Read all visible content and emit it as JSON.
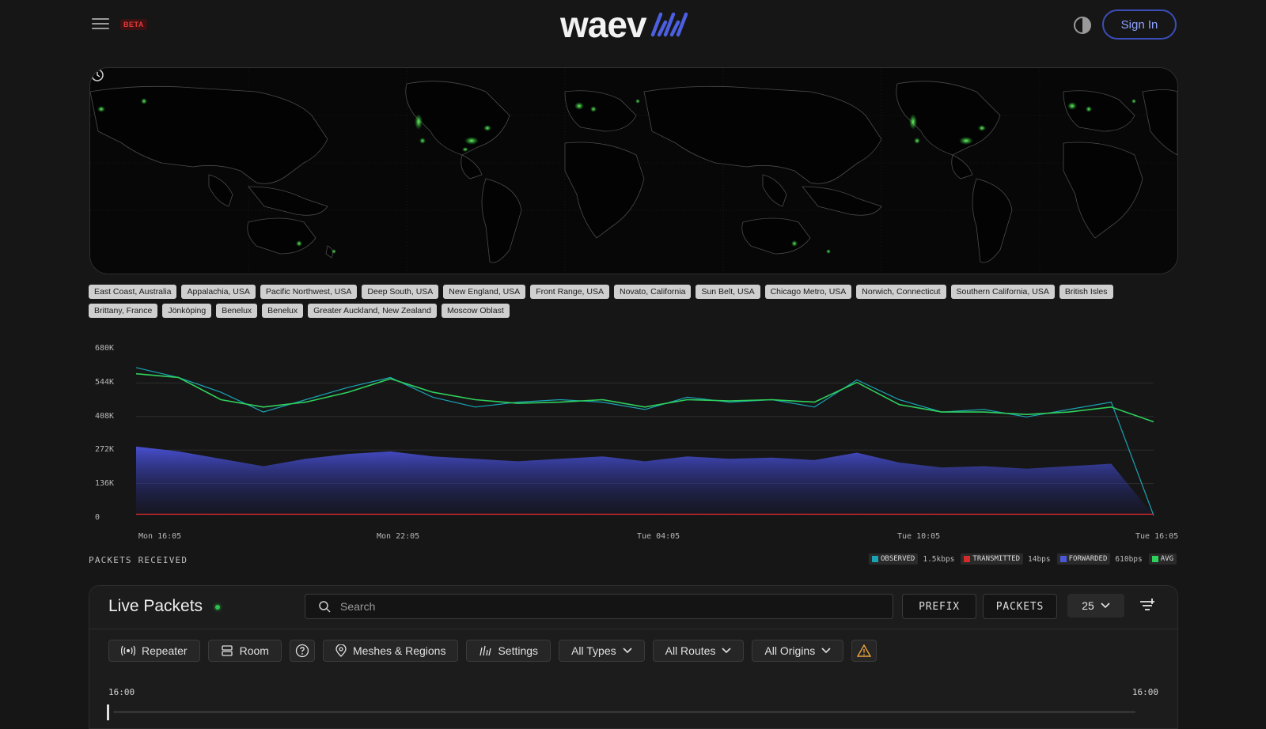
{
  "header": {
    "beta_label": "BETA",
    "logo_text": "waev",
    "signin_label": "Sign In"
  },
  "regions": [
    "East Coast, Australia",
    "Appalachia, USA",
    "Pacific Northwest, USA",
    "Deep South, USA",
    "New England, USA",
    "Front Range, USA",
    "Novato, California",
    "Sun Belt, USA",
    "Chicago Metro, USA",
    "Norwich, Connecticut",
    "Southern California, USA",
    "British Isles",
    "Brittany, France",
    "Jönköping",
    "Benelux",
    "Benelux",
    "Greater Auckland, New Zealand",
    "Moscow Oblast"
  ],
  "chart_data": {
    "type": "area",
    "title": "PACKETS RECEIVED",
    "y_ticks": [
      "680K",
      "544K",
      "408K",
      "272K",
      "136K",
      "0"
    ],
    "x_ticks": [
      "Mon 16:05",
      "Mon 22:05",
      "Tue 04:05",
      "Tue 10:05",
      "Tue 16:05"
    ],
    "ylim": [
      0,
      680000
    ],
    "x": [
      "Mon 16:05",
      "Mon 17:05",
      "Mon 18:05",
      "Mon 19:05",
      "Mon 20:05",
      "Mon 21:05",
      "Mon 22:05",
      "Mon 23:05",
      "Tue 00:05",
      "Tue 01:05",
      "Tue 02:05",
      "Tue 03:05",
      "Tue 04:05",
      "Tue 05:05",
      "Tue 06:05",
      "Tue 07:05",
      "Tue 08:05",
      "Tue 09:05",
      "Tue 10:05",
      "Tue 11:05",
      "Tue 12:05",
      "Tue 13:05",
      "Tue 14:05",
      "Tue 15:05",
      "Tue 16:05"
    ],
    "series": [
      {
        "name": "OBSERVED",
        "color": "#1aa3b5",
        "values": [
          600000,
          560000,
          500000,
          420000,
          470000,
          520000,
          560000,
          480000,
          440000,
          460000,
          470000,
          460000,
          430000,
          480000,
          460000,
          470000,
          440000,
          550000,
          470000,
          420000,
          430000,
          400000,
          430000,
          460000,
          0
        ]
      },
      {
        "name": "AVG",
        "color": "#2fd05c",
        "values": [
          575000,
          560000,
          470000,
          440000,
          460000,
          500000,
          555000,
          500000,
          470000,
          455000,
          460000,
          470000,
          440000,
          470000,
          465000,
          470000,
          460000,
          540000,
          450000,
          420000,
          420000,
          410000,
          420000,
          440000,
          380000
        ]
      },
      {
        "name": "FORWARDED",
        "color": "#3a44c8",
        "values": [
          280000,
          260000,
          230000,
          200000,
          230000,
          250000,
          260000,
          240000,
          230000,
          220000,
          230000,
          240000,
          220000,
          240000,
          230000,
          235000,
          225000,
          255000,
          215000,
          195000,
          200000,
          190000,
          200000,
          210000,
          0
        ]
      },
      {
        "name": "TRANSMITTED",
        "color": "#d42a2a",
        "values": [
          5000,
          5000,
          5000,
          5000,
          5000,
          5000,
          5000,
          5000,
          5000,
          5000,
          5000,
          5000,
          5000,
          5000,
          5000,
          5000,
          5000,
          5000,
          5000,
          5000,
          5000,
          5000,
          5000,
          5000,
          5000
        ]
      }
    ],
    "legend": [
      {
        "name": "OBSERVED",
        "value": "1.5kbps",
        "color": "#1aa3b5"
      },
      {
        "name": "TRANSMITTED",
        "value": "14bps",
        "color": "#d42a2a"
      },
      {
        "name": "FORWARDED",
        "value": "610bps",
        "color": "#4a58d8"
      },
      {
        "name": "AVG",
        "value": "",
        "color": "#2fd05c"
      }
    ],
    "grid": true,
    "legend_position": "bottom-right"
  },
  "live": {
    "title": "Live Packets",
    "search_placeholder": "Search",
    "prefix_label": "PREFIX",
    "packets_label": "PACKETS",
    "page_size": "25",
    "toolbar": {
      "repeater": "Repeater",
      "room": "Room",
      "meshes": "Meshes & Regions",
      "settings": "Settings",
      "types": "All Types",
      "routes": "All Routes",
      "origins": "All Origins"
    },
    "time_start": "16:00",
    "time_end": "16:00"
  },
  "colors": {
    "accent": "#3b4db8",
    "map_glow": "#37e83f",
    "beta": "#e23b3b"
  },
  "icons": [
    "menu-icon",
    "theme-icon",
    "history-icon",
    "search-icon",
    "filter-icon",
    "repeater-icon",
    "room-icon",
    "help-icon",
    "pin-icon",
    "settings-icon",
    "chevron-down-icon",
    "warning-icon"
  ]
}
